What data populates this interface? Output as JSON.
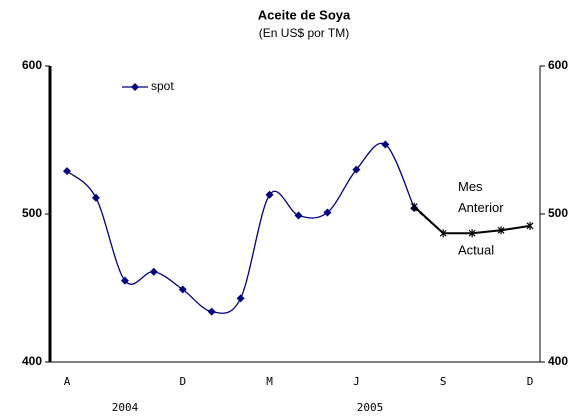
{
  "chart_data": {
    "type": "line",
    "title": "Aceite de Soya",
    "subtitle": "(En US$ por TM)",
    "categories": [
      "A",
      null,
      null,
      null,
      "D",
      null,
      null,
      "M",
      null,
      null,
      "J",
      null,
      null,
      "S",
      null,
      null,
      "D"
    ],
    "year_labels": [
      "2004",
      "2005"
    ],
    "series": [
      {
        "name": "spot",
        "color": "#000080",
        "values": [
          529,
          511,
          455,
          461,
          449,
          434,
          443,
          513,
          499,
          501,
          530,
          547,
          504,
          null,
          null,
          null,
          null
        ]
      },
      {
        "name": "Mes Anterior",
        "color": "#000000",
        "values": [
          null,
          null,
          null,
          null,
          null,
          null,
          null,
          null,
          null,
          null,
          null,
          null,
          504,
          487,
          487,
          489,
          492
        ]
      },
      {
        "name": "Actual",
        "color": "#000000",
        "values": [
          null,
          null,
          null,
          null,
          null,
          null,
          null,
          null,
          null,
          null,
          null,
          null,
          505,
          487,
          487,
          489,
          492
        ]
      }
    ],
    "ylim": [
      400,
      600
    ],
    "yticks": [
      400,
      500,
      600
    ],
    "y2lim": [
      400,
      600
    ],
    "y2ticks": [
      400,
      500,
      600
    ],
    "legend": "top-left"
  }
}
